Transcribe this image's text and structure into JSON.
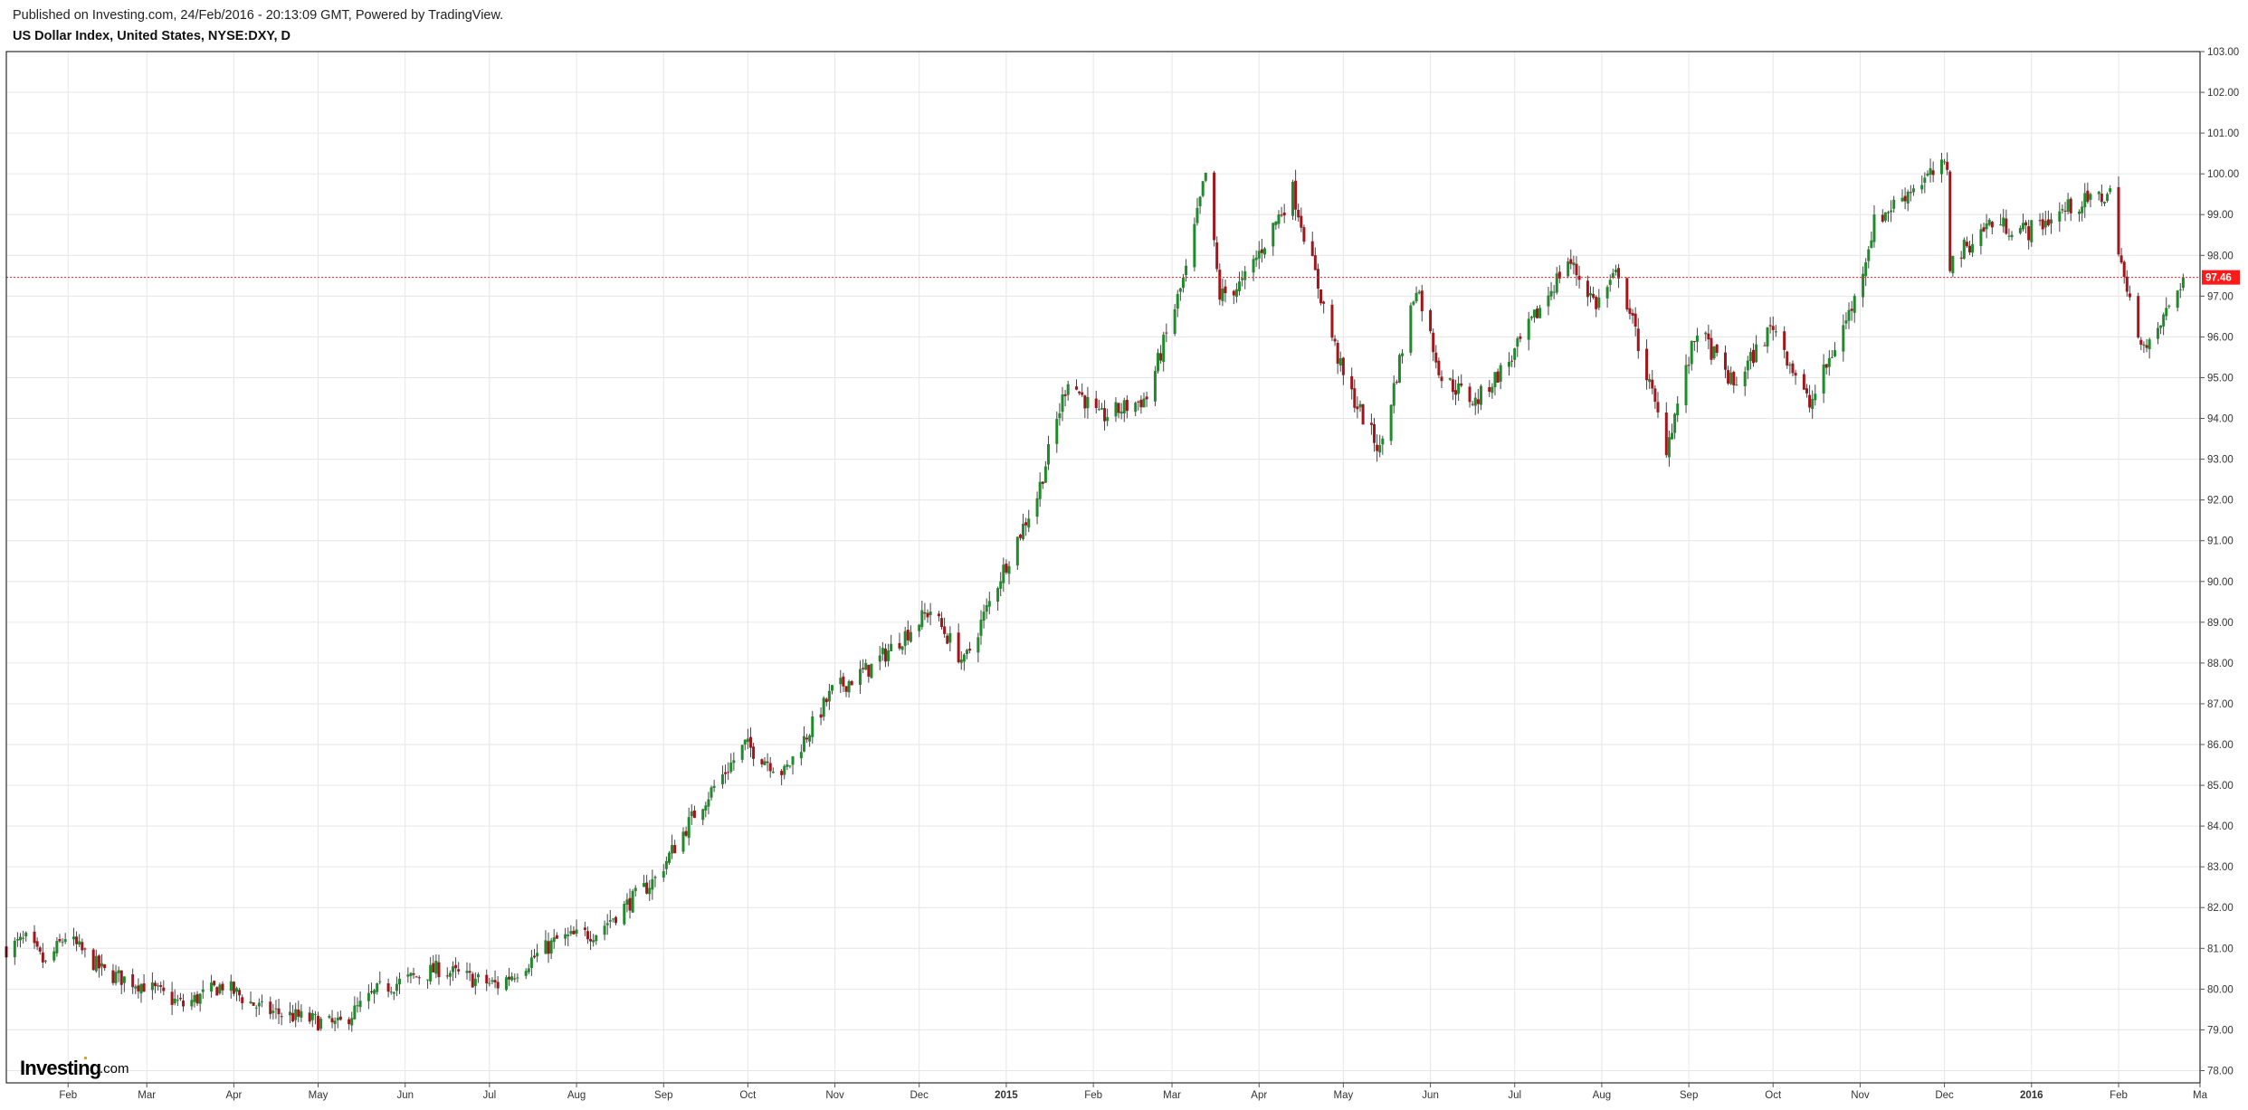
{
  "header": {
    "published": "Published on Investing.com, 24/Feb/2016 - 20:13:09 GMT, Powered by TradingView.",
    "symbol": "US Dollar Index, United States, NYSE:DXY, D"
  },
  "brand": {
    "name": "Investing",
    "suffix": ".com",
    "color": "#000000",
    "accent": "#f2a300"
  },
  "colors": {
    "up": "#1f8b2a",
    "down": "#a2151a",
    "wick": "#444444",
    "last_price": "#ff1a1a",
    "grid": "#e6e6e6",
    "border": "#000000"
  },
  "chart_data": {
    "type": "candlestick",
    "title": "US Dollar Index, United States, NYSE:DXY, D",
    "xlabel": "",
    "ylabel": "",
    "ylim": [
      77.7,
      103.0
    ],
    "x_range": [
      "2014-01-10",
      "2016-03-01"
    ],
    "grid": true,
    "y_axis_side": "right",
    "y_ticks": [
      "78.00",
      "79.00",
      "80.00",
      "81.00",
      "82.00",
      "83.00",
      "84.00",
      "85.00",
      "86.00",
      "87.00",
      "88.00",
      "89.00",
      "90.00",
      "91.00",
      "92.00",
      "93.00",
      "94.00",
      "95.00",
      "96.00",
      "97.00",
      "98.00",
      "99.00",
      "100.00",
      "101.00",
      "102.00",
      "103.00"
    ],
    "x_ticks": [
      {
        "label": "Feb",
        "date": "2014-02-01"
      },
      {
        "label": "Mar",
        "date": "2014-03-01"
      },
      {
        "label": "Apr",
        "date": "2014-04-01"
      },
      {
        "label": "May",
        "date": "2014-05-01"
      },
      {
        "label": "Jun",
        "date": "2014-06-01"
      },
      {
        "label": "Jul",
        "date": "2014-07-01"
      },
      {
        "label": "Aug",
        "date": "2014-08-01"
      },
      {
        "label": "Sep",
        "date": "2014-09-01"
      },
      {
        "label": "Oct",
        "date": "2014-10-01"
      },
      {
        "label": "Nov",
        "date": "2014-11-01"
      },
      {
        "label": "Dec",
        "date": "2014-12-01"
      },
      {
        "label": "2015",
        "date": "2015-01-01",
        "bold": true
      },
      {
        "label": "Feb",
        "date": "2015-02-01"
      },
      {
        "label": "Mar",
        "date": "2015-03-01"
      },
      {
        "label": "Apr",
        "date": "2015-04-01"
      },
      {
        "label": "May",
        "date": "2015-05-01"
      },
      {
        "label": "Jun",
        "date": "2015-06-01"
      },
      {
        "label": "Jul",
        "date": "2015-07-01"
      },
      {
        "label": "Aug",
        "date": "2015-08-01"
      },
      {
        "label": "Sep",
        "date": "2015-09-01"
      },
      {
        "label": "Oct",
        "date": "2015-10-01"
      },
      {
        "label": "Nov",
        "date": "2015-11-01"
      },
      {
        "label": "Dec",
        "date": "2015-12-01"
      },
      {
        "label": "2016",
        "date": "2016-01-01",
        "bold": true
      },
      {
        "label": "Feb",
        "date": "2016-02-01"
      },
      {
        "label": "Ma",
        "date": "2016-03-01"
      }
    ],
    "last_price": 97.46,
    "last_price_label": "97.46",
    "close_anchors": [
      {
        "date": "2014-01-10",
        "close": 81.0
      },
      {
        "date": "2014-01-17",
        "close": 81.2
      },
      {
        "date": "2014-01-24",
        "close": 80.6
      },
      {
        "date": "2014-01-31",
        "close": 81.3
      },
      {
        "date": "2014-02-14",
        "close": 80.4
      },
      {
        "date": "2014-02-28",
        "close": 80.1
      },
      {
        "date": "2014-03-14",
        "close": 79.6
      },
      {
        "date": "2014-03-28",
        "close": 80.1
      },
      {
        "date": "2014-04-11",
        "close": 79.5
      },
      {
        "date": "2014-05-08",
        "close": 79.1
      },
      {
        "date": "2014-05-23",
        "close": 80.0
      },
      {
        "date": "2014-06-13",
        "close": 80.5
      },
      {
        "date": "2014-06-27",
        "close": 80.2
      },
      {
        "date": "2014-07-04",
        "close": 80.1
      },
      {
        "date": "2014-07-25",
        "close": 81.2
      },
      {
        "date": "2014-08-08",
        "close": 81.4
      },
      {
        "date": "2014-08-29",
        "close": 82.7
      },
      {
        "date": "2014-09-12",
        "close": 84.3
      },
      {
        "date": "2014-09-30",
        "close": 86.0
      },
      {
        "date": "2014-10-14",
        "close": 85.3
      },
      {
        "date": "2014-10-31",
        "close": 87.3
      },
      {
        "date": "2014-11-14",
        "close": 87.9
      },
      {
        "date": "2014-12-05",
        "close": 89.3
      },
      {
        "date": "2014-12-17",
        "close": 88.0
      },
      {
        "date": "2014-12-31",
        "close": 90.3
      },
      {
        "date": "2015-01-12",
        "close": 92.1
      },
      {
        "date": "2015-01-23",
        "close": 95.0
      },
      {
        "date": "2015-02-03",
        "close": 94.0
      },
      {
        "date": "2015-02-20",
        "close": 94.5
      },
      {
        "date": "2015-03-06",
        "close": 97.6
      },
      {
        "date": "2015-03-13",
        "close": 100.0
      },
      {
        "date": "2015-03-18",
        "close": 97.0
      },
      {
        "date": "2015-03-26",
        "close": 97.3
      },
      {
        "date": "2015-04-13",
        "close": 99.6
      },
      {
        "date": "2015-04-23",
        "close": 97.0
      },
      {
        "date": "2015-05-01",
        "close": 95.0
      },
      {
        "date": "2015-05-14",
        "close": 93.2
      },
      {
        "date": "2015-05-27",
        "close": 97.3
      },
      {
        "date": "2015-06-05",
        "close": 95.0
      },
      {
        "date": "2015-06-17",
        "close": 94.4
      },
      {
        "date": "2015-06-30",
        "close": 95.5
      },
      {
        "date": "2015-07-20",
        "close": 97.9
      },
      {
        "date": "2015-07-30",
        "close": 96.8
      },
      {
        "date": "2015-08-07",
        "close": 97.6
      },
      {
        "date": "2015-08-24",
        "close": 93.3
      },
      {
        "date": "2015-09-04",
        "close": 96.2
      },
      {
        "date": "2015-09-17",
        "close": 94.8
      },
      {
        "date": "2015-10-01",
        "close": 96.3
      },
      {
        "date": "2015-10-14",
        "close": 94.3
      },
      {
        "date": "2015-10-30",
        "close": 96.9
      },
      {
        "date": "2015-11-06",
        "close": 98.8
      },
      {
        "date": "2015-11-20",
        "close": 99.7
      },
      {
        "date": "2015-12-02",
        "close": 100.2
      },
      {
        "date": "2015-12-03",
        "close": 97.8
      },
      {
        "date": "2015-12-17",
        "close": 98.8
      },
      {
        "date": "2015-12-31",
        "close": 98.6
      },
      {
        "date": "2016-01-15",
        "close": 99.2
      },
      {
        "date": "2016-01-29",
        "close": 99.5
      },
      {
        "date": "2016-02-04",
        "close": 97.0
      },
      {
        "date": "2016-02-11",
        "close": 95.6
      },
      {
        "date": "2016-02-24",
        "close": 97.46
      }
    ]
  }
}
